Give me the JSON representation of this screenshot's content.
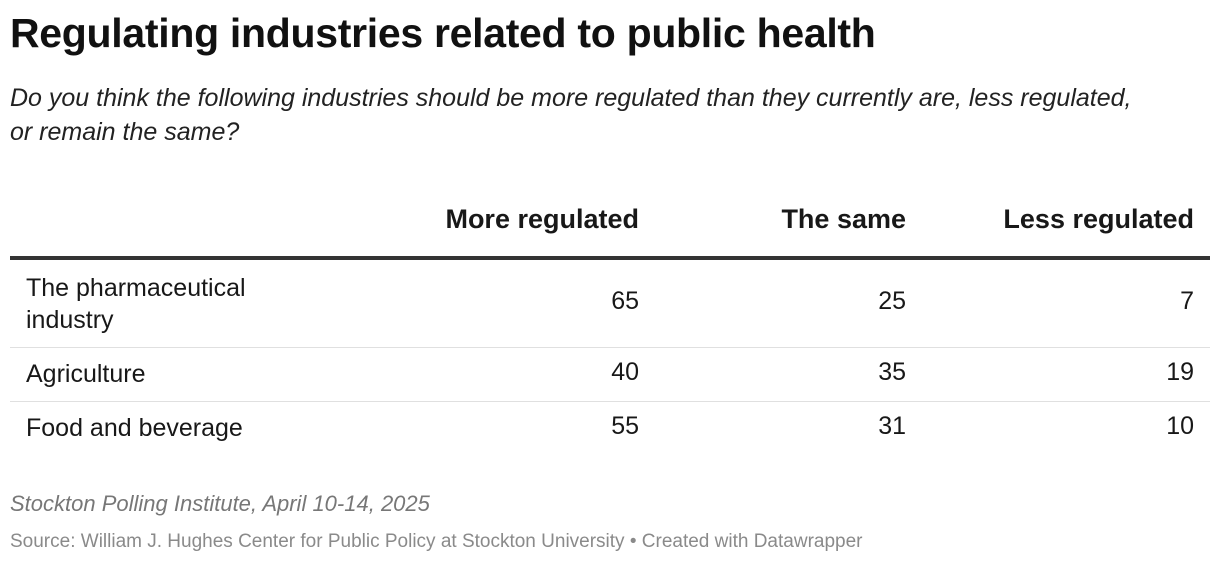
{
  "header": {
    "title": "Regulating industries related to public health",
    "subtitle": "Do you think the following industries should be more regulated than they currently are, less regulated, or remain the same?"
  },
  "chart_data": {
    "type": "table",
    "columns": [
      "More regulated",
      "The same",
      "Less regulated"
    ],
    "rows": [
      {
        "label": "The pharmaceutical industry",
        "values": [
          "65",
          "25",
          "7"
        ]
      },
      {
        "label": "Agriculture",
        "values": [
          "40",
          "35",
          "19"
        ]
      },
      {
        "label": "Food and beverage",
        "values": [
          "55",
          "31",
          "10"
        ]
      }
    ]
  },
  "footer": {
    "note": "Stockton Polling Institute, April 10-14, 2025",
    "source": "Source: William J. Hughes Center for Public Policy at Stockton University • Created with Datawrapper"
  }
}
